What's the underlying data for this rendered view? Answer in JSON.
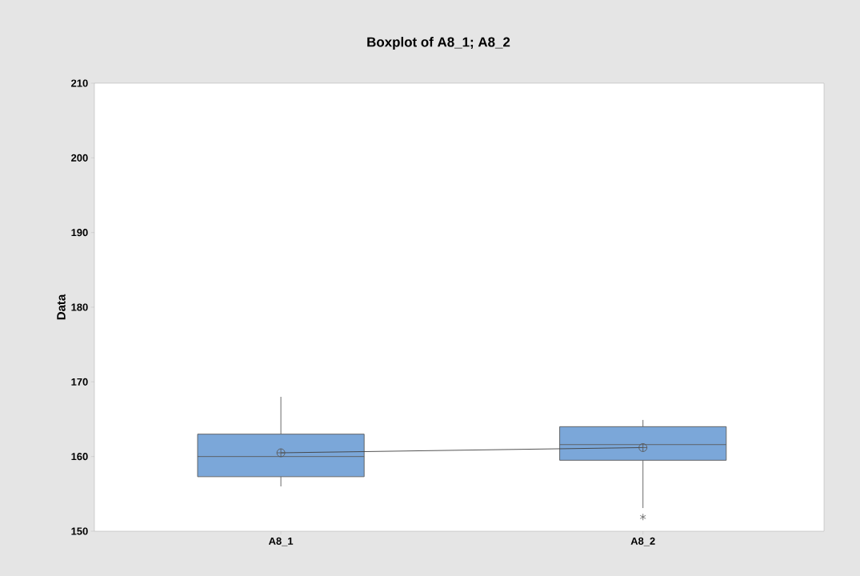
{
  "chart_data": {
    "type": "box",
    "title": "Boxplot of A8_1; A8_2",
    "ylabel": "Data",
    "categories": [
      "A8_1",
      "A8_2"
    ],
    "boxes": [
      {
        "low": 156.0,
        "q1": 157.3,
        "median": 160.0,
        "q3": 163.0,
        "high": 168.0,
        "mean": 160.5
      },
      {
        "low": 153.1,
        "q1": 159.5,
        "median": 161.6,
        "q3": 164.0,
        "high": 164.9,
        "mean": 161.2,
        "outliers": [
          151.9
        ]
      }
    ],
    "color": "#7ba7d9",
    "series": [
      {
        "type": "line",
        "color": "#404040",
        "values": [
          160.5,
          161.2
        ]
      }
    ],
    "ylim": [
      150,
      210
    ],
    "yticks": [
      150,
      160,
      170,
      180,
      190,
      200,
      210
    ]
  }
}
